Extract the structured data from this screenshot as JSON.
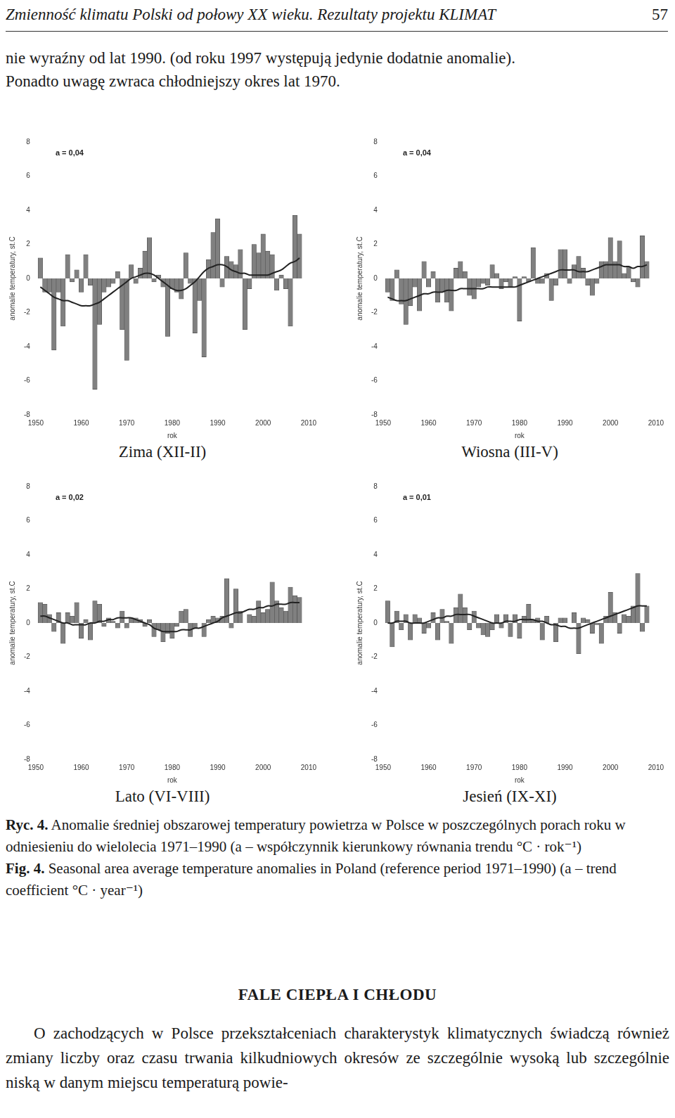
{
  "header": {
    "title": "Zmienność klimatu Polski od połowy XX wieku. Rezultaty projektu KLIMAT",
    "page": "57"
  },
  "intro": [
    "nie wyraźny od lat 1990. (od roku 1997 występują jedynie dodatnie anomalie).",
    "Ponadto uwagę zwraca chłodniejszy okres lat 1970."
  ],
  "chart_data": [
    {
      "type": "bar",
      "title": "Zima (XII-II)",
      "annotation": "a = 0,04",
      "x_label": "rok",
      "y_label": "anomalie temperatury, st.C",
      "x": [
        1951,
        1952,
        1953,
        1954,
        1955,
        1956,
        1957,
        1958,
        1959,
        1960,
        1961,
        1962,
        1963,
        1964,
        1965,
        1966,
        1967,
        1968,
        1969,
        1970,
        1971,
        1972,
        1973,
        1974,
        1975,
        1976,
        1977,
        1978,
        1979,
        1980,
        1981,
        1982,
        1983,
        1984,
        1985,
        1986,
        1987,
        1988,
        1989,
        1990,
        1991,
        1992,
        1993,
        1994,
        1995,
        1996,
        1997,
        1998,
        1999,
        2000,
        2001,
        2002,
        2003,
        2004,
        2005,
        2006,
        2007,
        2008
      ],
      "series": [
        {
          "type": "bar",
          "color": "#808080",
          "values": [
            1.2,
            -0.8,
            -0.8,
            -4.2,
            -0.8,
            -2.8,
            1.4,
            -0.2,
            0.5,
            -0.8,
            1.4,
            -0.4,
            -6.5,
            -2.7,
            -0.8,
            -0.5,
            -0.3,
            0.4,
            -3.0,
            -4.8,
            0.8,
            -0.3,
            0.6,
            1.6,
            2.4,
            -0.2,
            0.2,
            -0.5,
            -3.4,
            -0.6,
            -0.8,
            -1.2,
            1.5,
            -0.3,
            -3.2,
            -1.3,
            -4.6,
            1.1,
            2.7,
            3.5,
            -0.5,
            1.3,
            1.0,
            0.8,
            1.7,
            -3.0,
            -0.6,
            2.0,
            1.5,
            2.6,
            1.6,
            1.4,
            -0.7,
            0.2,
            -0.6,
            -2.8,
            3.7,
            2.6
          ]
        },
        {
          "type": "line",
          "color": "#222222",
          "values": [
            -0.5,
            -0.7,
            -0.9,
            -1.1,
            -1.2,
            -1.3,
            -1.3,
            -1.4,
            -1.5,
            -1.6,
            -1.6,
            -1.6,
            -1.5,
            -1.4,
            -1.2,
            -1.0,
            -0.8,
            -0.6,
            -0.4,
            -0.2,
            0.0,
            0.1,
            0.2,
            0.3,
            0.3,
            0.2,
            0.0,
            -0.2,
            -0.4,
            -0.6,
            -0.7,
            -0.7,
            -0.6,
            -0.4,
            -0.2,
            0.1,
            0.4,
            0.6,
            0.7,
            0.8,
            0.8,
            0.7,
            0.5,
            0.4,
            0.3,
            0.3,
            0.2,
            0.2,
            0.2,
            0.2,
            0.2,
            0.3,
            0.4,
            0.5,
            0.7,
            0.9,
            1.0,
            1.2
          ]
        }
      ],
      "xlim": [
        1950,
        2010
      ],
      "xticks": [
        1950,
        1960,
        1970,
        1980,
        1990,
        2000,
        2010
      ],
      "ylim": [
        -8,
        8
      ],
      "yticks": [
        -8,
        -6,
        -4,
        -2,
        0,
        2,
        4,
        6,
        8
      ],
      "grid": false
    },
    {
      "type": "bar",
      "title": "Wiosna (III-V)",
      "annotation": "a = 0,04",
      "x_label": "rok",
      "y_label": "anomalie temperatury, st.C",
      "x": [
        1951,
        1952,
        1953,
        1954,
        1955,
        1956,
        1957,
        1958,
        1959,
        1960,
        1961,
        1962,
        1963,
        1964,
        1965,
        1966,
        1967,
        1968,
        1969,
        1970,
        1971,
        1972,
        1973,
        1974,
        1975,
        1976,
        1977,
        1978,
        1979,
        1980,
        1981,
        1982,
        1983,
        1984,
        1985,
        1986,
        1987,
        1988,
        1989,
        1990,
        1991,
        1992,
        1993,
        1994,
        1995,
        1996,
        1997,
        1998,
        1999,
        2000,
        2001,
        2002,
        2003,
        2004,
        2005,
        2006,
        2007,
        2008
      ],
      "series": [
        {
          "type": "bar",
          "color": "#808080",
          "values": [
            -0.8,
            -1.3,
            0.5,
            -1.5,
            -2.7,
            -1.6,
            -0.5,
            -1.9,
            1.0,
            -0.5,
            0.4,
            -1.4,
            -0.8,
            -1.4,
            -1.9,
            0.6,
            1.0,
            0.4,
            -1.0,
            -1.2,
            -0.5,
            -0.3,
            -0.4,
            0.8,
            0.3,
            -0.6,
            -0.2,
            -0.5,
            0.1,
            -2.5,
            0.1,
            -0.2,
            1.8,
            -0.3,
            -0.3,
            0.3,
            -1.3,
            -0.4,
            1.7,
            1.7,
            -0.3,
            0.8,
            1.3,
            0.6,
            -0.4,
            -1.0,
            -0.3,
            1.0,
            1.0,
            2.4,
            1.0,
            2.2,
            0.3,
            0.7,
            -0.2,
            -0.5,
            2.5,
            1.0
          ]
        },
        {
          "type": "line",
          "color": "#222222",
          "values": [
            -1.1,
            -1.2,
            -1.3,
            -1.3,
            -1.3,
            -1.2,
            -1.1,
            -1.0,
            -0.9,
            -0.9,
            -0.8,
            -0.8,
            -0.8,
            -0.7,
            -0.7,
            -0.7,
            -0.6,
            -0.6,
            -0.6,
            -0.6,
            -0.6,
            -0.6,
            -0.5,
            -0.5,
            -0.5,
            -0.5,
            -0.5,
            -0.5,
            -0.5,
            -0.4,
            -0.3,
            -0.2,
            -0.1,
            0.0,
            0.1,
            0.2,
            0.3,
            0.4,
            0.5,
            0.5,
            0.5,
            0.5,
            0.4,
            0.4,
            0.4,
            0.5,
            0.6,
            0.7,
            0.8,
            0.8,
            0.8,
            0.8,
            0.7,
            0.7,
            0.6,
            0.7,
            0.7,
            0.8
          ]
        }
      ],
      "xlim": [
        1950,
        2010
      ],
      "xticks": [
        1950,
        1960,
        1970,
        1980,
        1990,
        2000,
        2010
      ],
      "ylim": [
        -8,
        8
      ],
      "yticks": [
        -8,
        -6,
        -4,
        -2,
        0,
        2,
        4,
        6,
        8
      ],
      "grid": false
    },
    {
      "type": "bar",
      "title": "Lato (VI-VIII)",
      "annotation": "a = 0,02",
      "x_label": "rok",
      "y_label": "anomalie temperatury, st.C",
      "x": [
        1951,
        1952,
        1953,
        1954,
        1955,
        1956,
        1957,
        1958,
        1959,
        1960,
        1961,
        1962,
        1963,
        1964,
        1965,
        1966,
        1967,
        1968,
        1969,
        1970,
        1971,
        1972,
        1973,
        1974,
        1975,
        1976,
        1977,
        1978,
        1979,
        1980,
        1981,
        1982,
        1983,
        1984,
        1985,
        1986,
        1987,
        1988,
        1989,
        1990,
        1991,
        1992,
        1993,
        1994,
        1995,
        1996,
        1997,
        1998,
        1999,
        2000,
        2001,
        2002,
        2003,
        2004,
        2005,
        2006,
        2007,
        2008
      ],
      "series": [
        {
          "type": "bar",
          "color": "#808080",
          "values": [
            1.2,
            1.1,
            0.5,
            -0.5,
            0.6,
            -1.2,
            0.6,
            0.4,
            1.2,
            -0.9,
            0.2,
            -1.0,
            1.3,
            1.1,
            -0.2,
            0.3,
            0.1,
            -0.3,
            0.7,
            -0.3,
            0.3,
            0.3,
            0.2,
            -0.2,
            0.2,
            -0.8,
            -0.4,
            -1.1,
            -0.6,
            -0.9,
            -0.2,
            0.7,
            0.8,
            -0.8,
            -0.3,
            0.0,
            -0.8,
            0.2,
            0.4,
            0.3,
            0.4,
            2.6,
            -0.3,
            2.0,
            0.7,
            0.0,
            0.5,
            0.4,
            1.3,
            0.6,
            0.8,
            2.4,
            1.3,
            0.9,
            0.7,
            2.1,
            1.6,
            1.5
          ]
        },
        {
          "type": "line",
          "color": "#222222",
          "values": [
            0.4,
            0.4,
            0.3,
            0.2,
            0.1,
            0.0,
            0.0,
            -0.1,
            -0.1,
            -0.1,
            -0.1,
            0.0,
            0.0,
            0.1,
            0.1,
            0.2,
            0.2,
            0.3,
            0.3,
            0.3,
            0.3,
            0.2,
            0.1,
            0.0,
            -0.1,
            -0.3,
            -0.4,
            -0.5,
            -0.5,
            -0.5,
            -0.5,
            -0.4,
            -0.4,
            -0.4,
            -0.3,
            -0.3,
            -0.2,
            -0.1,
            0.0,
            0.1,
            0.3,
            0.4,
            0.5,
            0.6,
            0.6,
            0.7,
            0.8,
            0.8,
            0.9,
            0.9,
            1.0,
            1.0,
            1.1,
            1.1,
            1.1,
            1.2,
            1.2,
            1.2
          ]
        }
      ],
      "xlim": [
        1950,
        2010
      ],
      "xticks": [
        1950,
        1960,
        1970,
        1980,
        1990,
        2000,
        2010
      ],
      "ylim": [
        -8,
        8
      ],
      "yticks": [
        -8,
        -6,
        -4,
        -2,
        0,
        2,
        4,
        6,
        8
      ],
      "grid": false
    },
    {
      "type": "bar",
      "title": "Jesień (IX-XI)",
      "annotation": "a = 0,01",
      "x_label": "rok",
      "y_label": "anomalie temperatury, st.C",
      "x": [
        1951,
        1952,
        1953,
        1954,
        1955,
        1956,
        1957,
        1958,
        1959,
        1960,
        1961,
        1962,
        1963,
        1964,
        1965,
        1966,
        1967,
        1968,
        1969,
        1970,
        1971,
        1972,
        1973,
        1974,
        1975,
        1976,
        1977,
        1978,
        1979,
        1980,
        1981,
        1982,
        1983,
        1984,
        1985,
        1986,
        1987,
        1988,
        1989,
        1990,
        1991,
        1992,
        1993,
        1994,
        1995,
        1996,
        1997,
        1998,
        1999,
        2000,
        2001,
        2002,
        2003,
        2004,
        2005,
        2006,
        2007,
        2008
      ],
      "series": [
        {
          "type": "bar",
          "color": "#808080",
          "values": [
            1.3,
            -1.4,
            0.7,
            -0.4,
            0.5,
            -1.0,
            0.5,
            0.3,
            -0.6,
            -0.3,
            0.6,
            -1.0,
            0.8,
            0.1,
            -1.2,
            0.9,
            1.7,
            0.9,
            -0.4,
            0.7,
            -0.3,
            -0.7,
            -0.8,
            -0.4,
            0.5,
            -0.3,
            0.5,
            -0.8,
            0.5,
            -0.9,
            0.4,
            1.1,
            0.2,
            0.3,
            -1.0,
            0.4,
            0.0,
            -1.1,
            0.3,
            0.3,
            0.0,
            0.6,
            -1.8,
            0.3,
            0.2,
            -0.6,
            -0.1,
            -1.2,
            0.4,
            1.8,
            0.6,
            -0.6,
            0.5,
            0.4,
            1.0,
            2.9,
            -0.5,
            1.0
          ]
        },
        {
          "type": "line",
          "color": "#222222",
          "values": [
            0.0,
            0.0,
            0.1,
            0.1,
            0.1,
            0.0,
            0.0,
            0.0,
            0.0,
            0.1,
            0.2,
            0.3,
            0.3,
            0.4,
            0.4,
            0.5,
            0.5,
            0.5,
            0.5,
            0.4,
            0.3,
            0.2,
            0.1,
            0.0,
            0.0,
            0.0,
            0.1,
            0.1,
            0.1,
            0.2,
            0.2,
            0.2,
            0.2,
            0.1,
            0.1,
            0.0,
            -0.1,
            -0.1,
            -0.2,
            -0.2,
            -0.3,
            -0.3,
            -0.3,
            -0.2,
            -0.1,
            0.0,
            0.1,
            0.2,
            0.3,
            0.4,
            0.5,
            0.6,
            0.7,
            0.8,
            0.9,
            1.0,
            1.0,
            1.0
          ]
        }
      ],
      "xlim": [
        1950,
        2010
      ],
      "xticks": [
        1950,
        1960,
        1970,
        1980,
        1990,
        2000,
        2010
      ],
      "ylim": [
        -8,
        8
      ],
      "yticks": [
        -8,
        -6,
        -4,
        -2,
        0,
        2,
        4,
        6,
        8
      ],
      "grid": false
    }
  ],
  "caption": {
    "pl_label": "Ryc. 4.",
    "pl": "Anomalie średniej obszarowej temperatury powietrza w Polsce w poszczególnych porach roku w odniesieniu do wielolecia 1971–1990 (a – współczynnik kierunkowy równania trendu °C · rok⁻¹)",
    "en_label": "Fig. 4.",
    "en": "Seasonal area average temperature anomalies in Poland (reference period 1971–1990) (a – trend coefficient °C · year⁻¹)"
  },
  "heading": "FALE CIEPŁA I CHŁODU",
  "paragraph": "O zachodzących w Polsce przekształceniach charakterystyk klimatycznych świadczą również zmiany liczby oraz czasu trwania kilkudniowych okresów ze szczególnie wysoką lub szczególnie niską w danym miejscu temperaturą powie-"
}
